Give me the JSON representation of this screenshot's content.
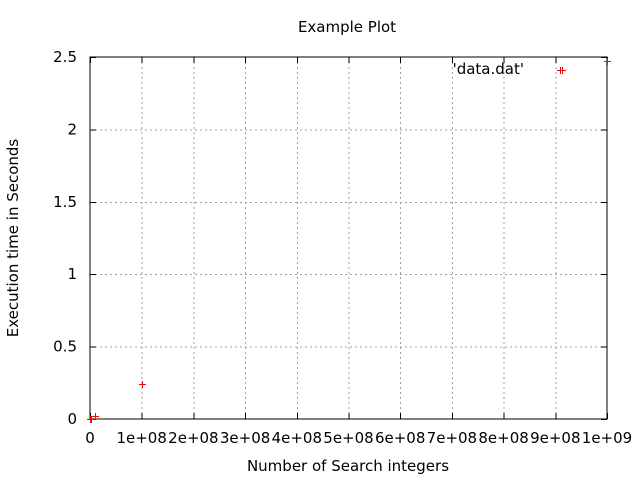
{
  "chart_data": {
    "type": "scatter",
    "title": "Example Plot",
    "xlabel": "Number of Search integers",
    "ylabel": "Execution time in Seconds",
    "xlim": [
      0,
      1000000000
    ],
    "ylim": [
      0,
      2.5
    ],
    "grid": true,
    "legend": {
      "placement": "top-right",
      "marker": "+"
    },
    "x_ticks": [
      {
        "value": 0,
        "label": "0"
      },
      {
        "value": 100000000,
        "label": "1e+08"
      },
      {
        "value": 200000000,
        "label": "2e+08"
      },
      {
        "value": 300000000,
        "label": "3e+08"
      },
      {
        "value": 400000000,
        "label": "4e+08"
      },
      {
        "value": 500000000,
        "label": "5e+08"
      },
      {
        "value": 600000000,
        "label": "6e+08"
      },
      {
        "value": 700000000,
        "label": "7e+08"
      },
      {
        "value": 800000000,
        "label": "8e+08"
      },
      {
        "value": 900000000,
        "label": "9e+08"
      },
      {
        "value": 1000000000,
        "label": "1e+09"
      }
    ],
    "y_ticks": [
      {
        "value": 0,
        "label": "0"
      },
      {
        "value": 0.5,
        "label": "0.5"
      },
      {
        "value": 1,
        "label": "1"
      },
      {
        "value": 1.5,
        "label": "1.5"
      },
      {
        "value": 2,
        "label": "2"
      },
      {
        "value": 2.5,
        "label": "2.5"
      }
    ],
    "series": [
      {
        "name": "'data.dat'",
        "color": "#ff0000",
        "marker": "+",
        "points": [
          {
            "x": 1000,
            "y": 0
          },
          {
            "x": 10000,
            "y": 0.001
          },
          {
            "x": 100000,
            "y": 0.002
          },
          {
            "x": 1000000,
            "y": 0.003
          },
          {
            "x": 10000000,
            "y": 0.024
          },
          {
            "x": 100000000,
            "y": 0.24
          },
          {
            "x": 912000000,
            "y": 2.41
          },
          {
            "x": 1000000000,
            "y": 2.47
          }
        ]
      }
    ]
  }
}
